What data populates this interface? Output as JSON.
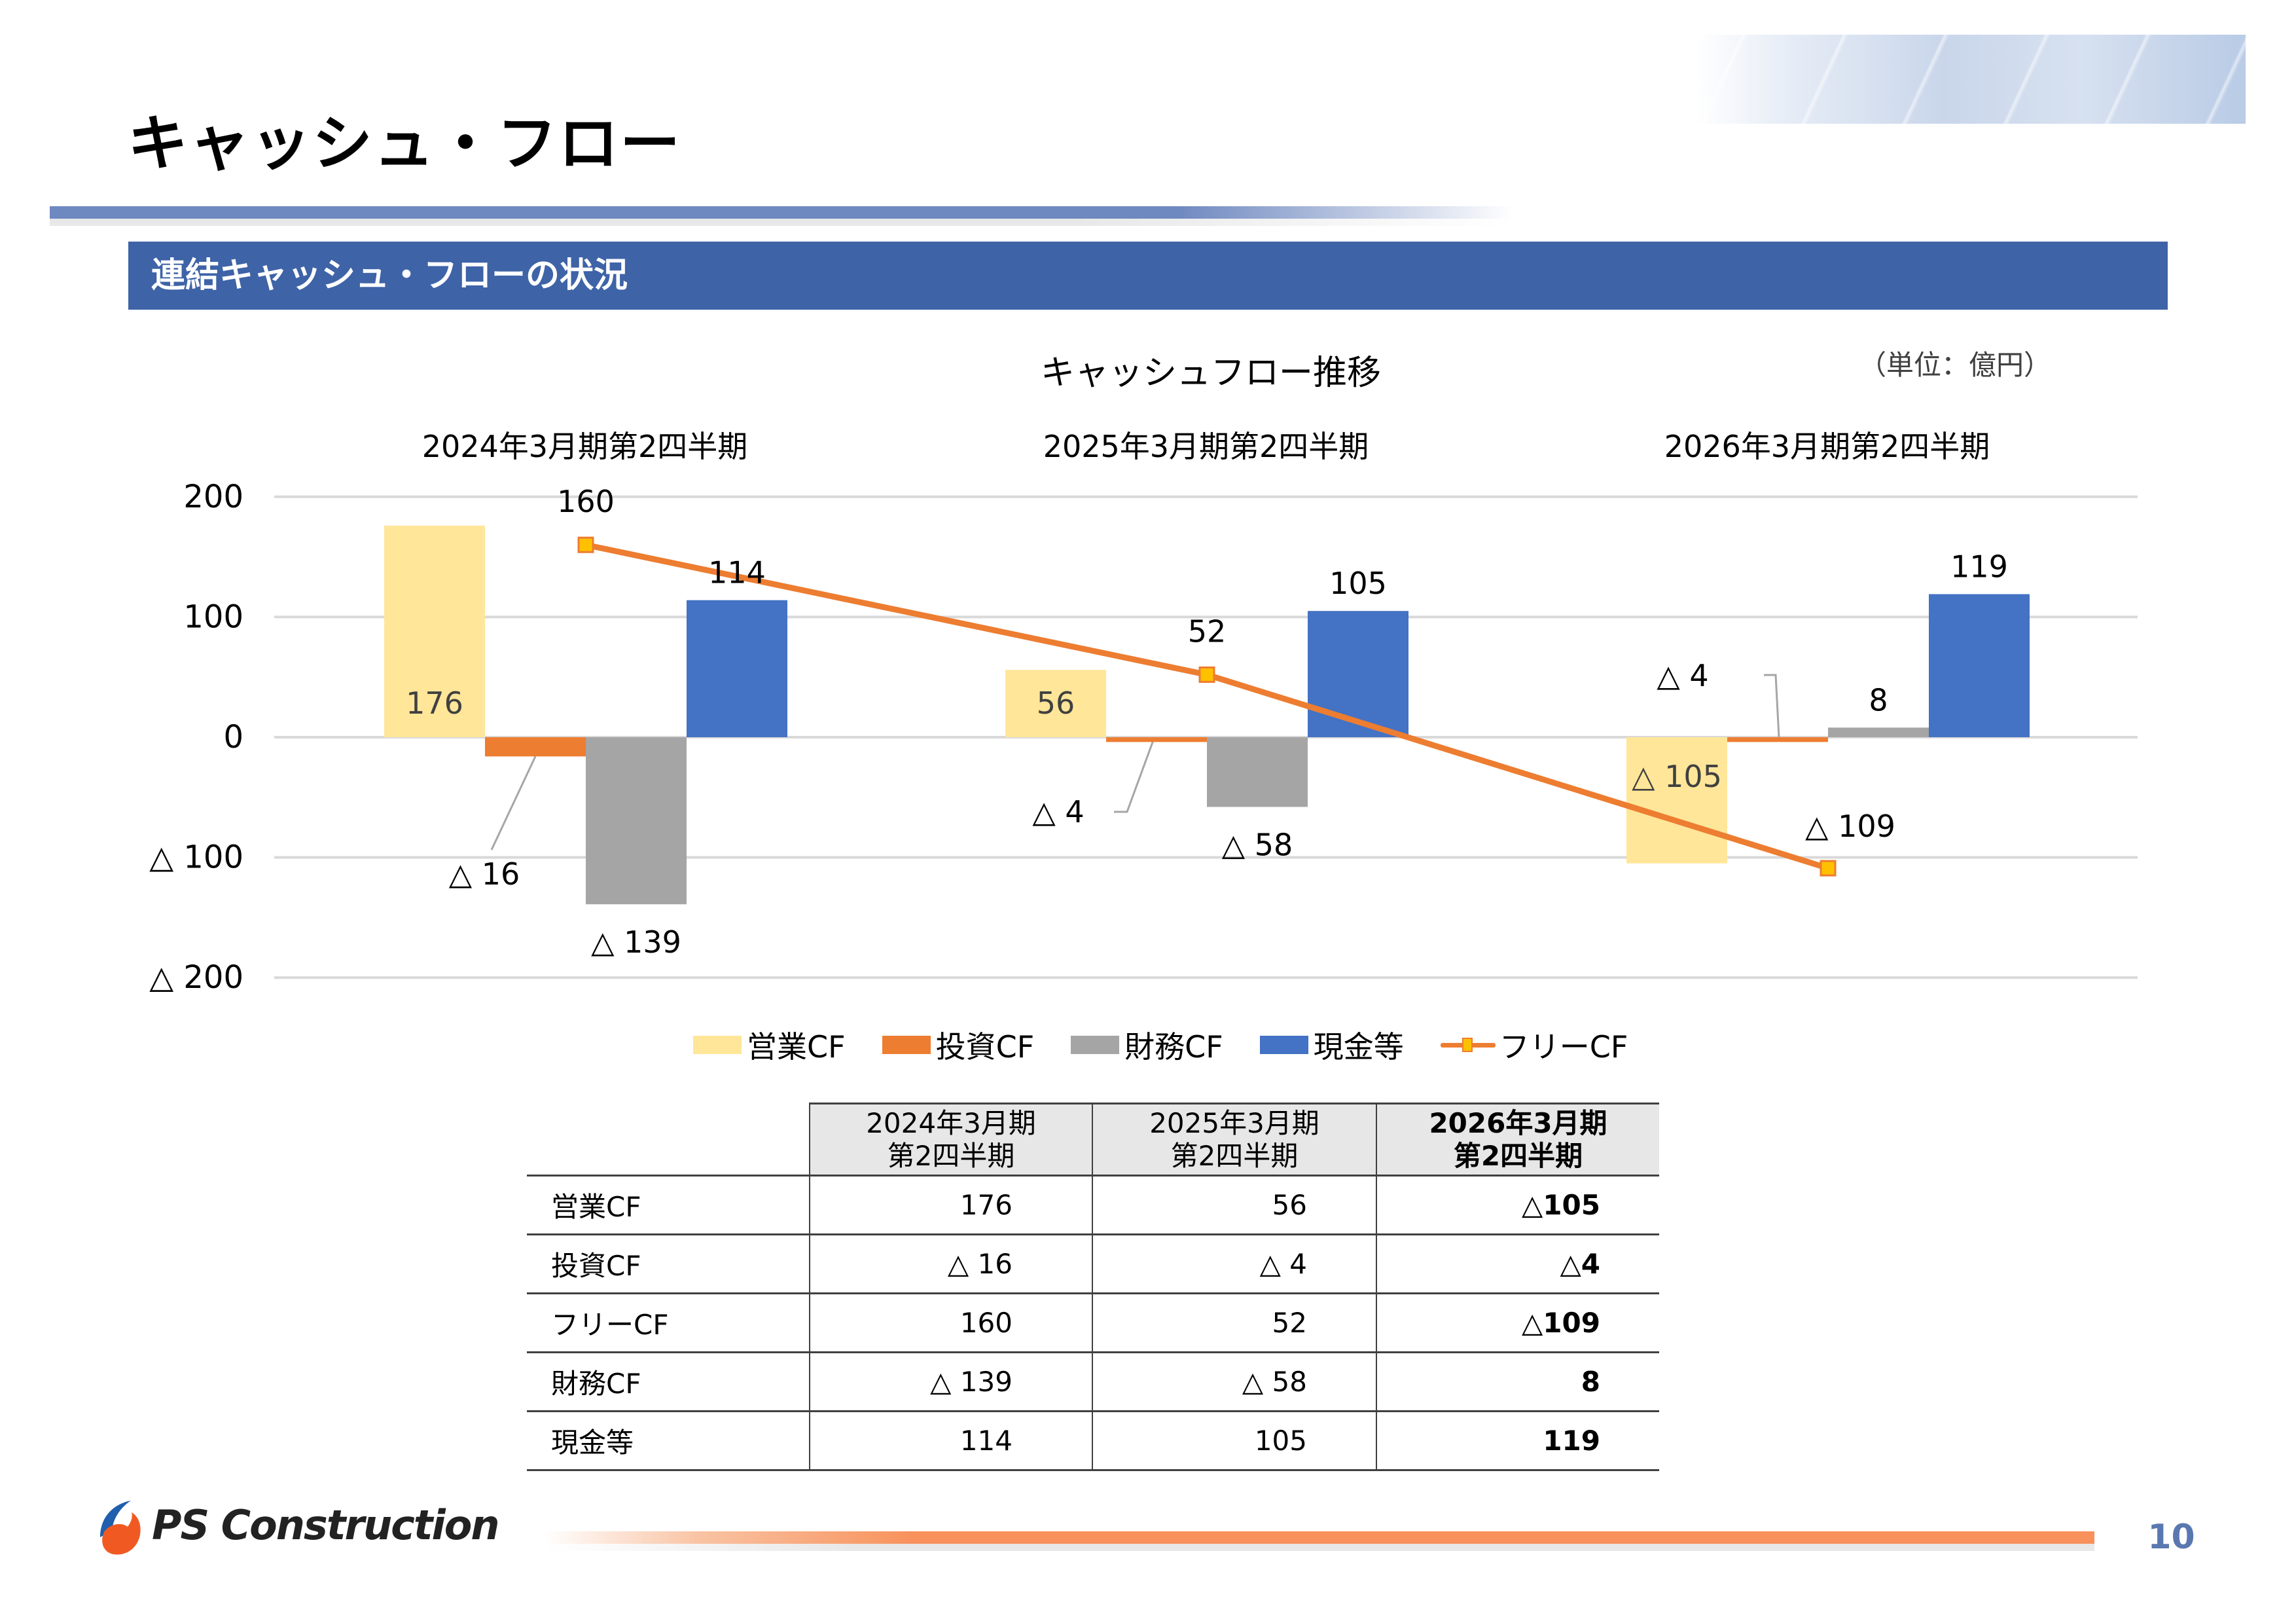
{
  "page": {
    "title": "キャッシュ・フロー",
    "section_title": "連結キャッシュ・フローの状況",
    "page_number": "10",
    "logo_text": "PS Construction"
  },
  "colors": {
    "operating": "#ffe699",
    "investing": "#ed7d31",
    "financing": "#a5a5a5",
    "cash": "#4472c4",
    "free": "#ed7d31",
    "free_marker": "#ffc000",
    "band": "#3e63a7",
    "page_number": "#5a78b0"
  },
  "chart_data": {
    "type": "bar",
    "title": "キャッシュフロー推移",
    "unit_label": "（単位：億円）",
    "categories": [
      "2024年3月期第2四半期",
      "2025年3月期第2四半期",
      "2026年3月期第2四半期"
    ],
    "series": [
      {
        "name": "営業CF",
        "type": "bar",
        "values": [
          176,
          56,
          -105
        ],
        "labels": [
          "176",
          "56",
          "△ 105"
        ]
      },
      {
        "name": "投資CF",
        "type": "bar",
        "values": [
          -16,
          -4,
          -4
        ],
        "labels": [
          "△ 16",
          "△ 4",
          "△ 4"
        ]
      },
      {
        "name": "財務CF",
        "type": "bar",
        "values": [
          -139,
          -58,
          8
        ],
        "labels": [
          "△ 139",
          "△ 58",
          "8"
        ]
      },
      {
        "name": "現金等",
        "type": "bar",
        "values": [
          114,
          105,
          119
        ],
        "labels": [
          "114",
          "105",
          "119"
        ]
      },
      {
        "name": "フリーCF",
        "type": "line",
        "values": [
          160,
          52,
          -109
        ],
        "labels": [
          "160",
          "52",
          "△ 109"
        ]
      }
    ],
    "yticks": [
      200,
      100,
      0,
      -100,
      -200
    ],
    "ytick_labels": [
      "200",
      "100",
      "0",
      "△ 100",
      "△ 200"
    ],
    "ylim": [
      -200,
      200
    ],
    "grid": true,
    "legend_position": "bottom",
    "legend": [
      "営業CF",
      "投資CF",
      "財務CF",
      "現金等",
      "フリーCF"
    ]
  },
  "table": {
    "headers": [
      {
        "line1": "2024年3月期",
        "line2": "第2四半期"
      },
      {
        "line1": "2025年3月期",
        "line2": "第2四半期"
      },
      {
        "line1": "2026年3月期",
        "line2": "第2四半期"
      }
    ],
    "rows": [
      {
        "label": "営業CF",
        "values": [
          "176",
          "56",
          "△105"
        ]
      },
      {
        "label": "投資CF",
        "values": [
          "△ 16",
          "△ 4",
          "△4"
        ]
      },
      {
        "label": "フリーCF",
        "values": [
          "160",
          "52",
          "△109"
        ]
      },
      {
        "label": "財務CF",
        "values": [
          "△ 139",
          "△ 58",
          "8"
        ]
      },
      {
        "label": "現金等",
        "values": [
          "114",
          "105",
          "119"
        ]
      }
    ]
  }
}
